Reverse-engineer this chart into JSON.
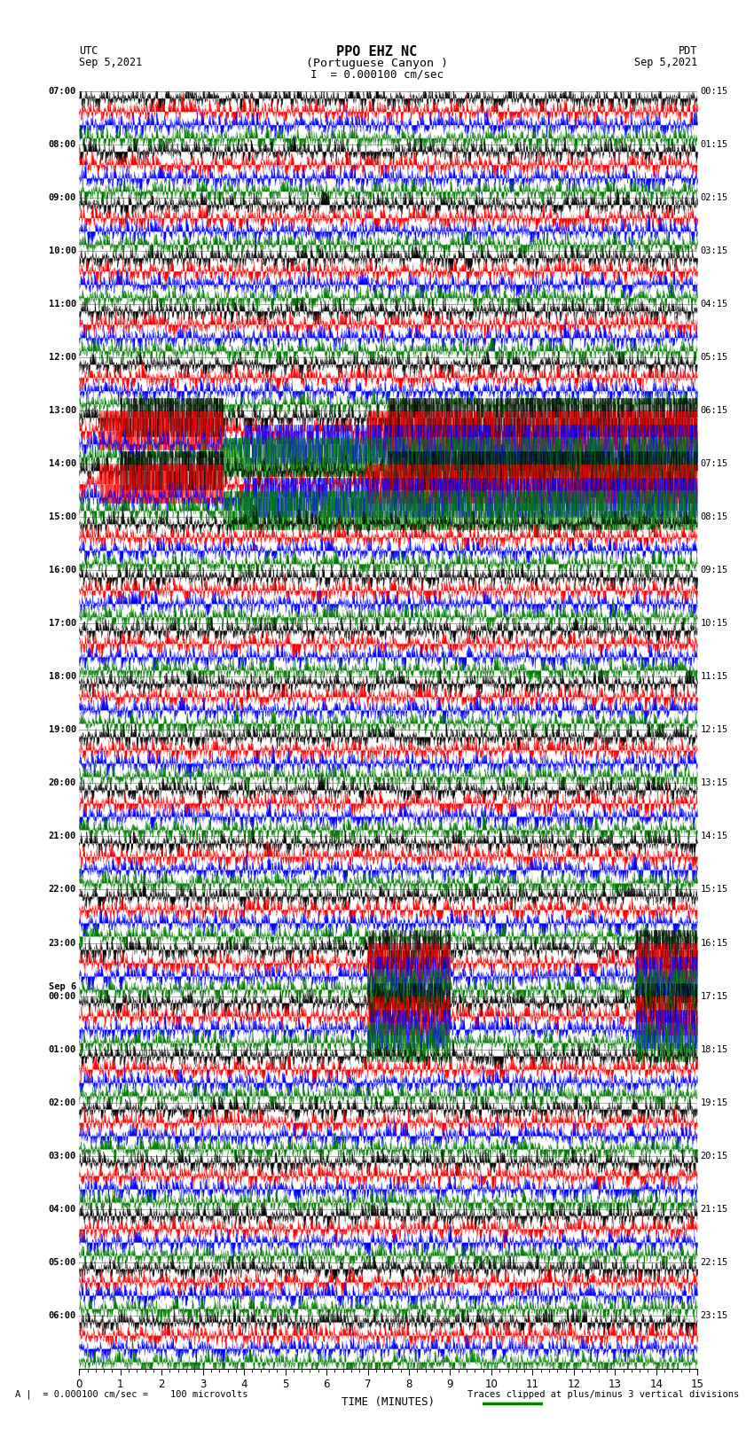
{
  "title_line1": "PPO EHZ NC",
  "title_line2": "(Portuguese Canyon )",
  "title_line3": "I  = 0.000100 cm/sec",
  "left_label_top": "UTC",
  "left_label_date": "Sep 5,2021",
  "right_label_top": "PDT",
  "right_label_date": "Sep 5,2021",
  "bottom_label": "TIME (MINUTES)",
  "footer_left": "A |  = 0.000100 cm/sec =    100 microvolts",
  "footer_right": "Traces clipped at plus/minus 3 vertical divisions",
  "utc_times": [
    "07:00",
    "08:00",
    "09:00",
    "10:00",
    "11:00",
    "12:00",
    "13:00",
    "14:00",
    "15:00",
    "16:00",
    "17:00",
    "18:00",
    "19:00",
    "20:00",
    "21:00",
    "22:00",
    "23:00",
    "Sep 6\n00:00",
    "01:00",
    "02:00",
    "03:00",
    "04:00",
    "05:00",
    "06:00"
  ],
  "pdt_times": [
    "00:15",
    "01:15",
    "02:15",
    "03:15",
    "04:15",
    "05:15",
    "06:15",
    "07:15",
    "08:15",
    "09:15",
    "10:15",
    "11:15",
    "12:15",
    "13:15",
    "14:15",
    "15:15",
    "16:15",
    "17:15",
    "18:15",
    "19:15",
    "20:15",
    "21:15",
    "22:15",
    "23:15"
  ],
  "n_rows": 24,
  "traces_per_row": 4,
  "colors": [
    "black",
    "red",
    "blue",
    "green"
  ],
  "bg_color": "white",
  "minutes": 15,
  "seed": 42,
  "big_event_rows": [
    6,
    7
  ],
  "medium_event_rows": [
    16,
    17
  ]
}
